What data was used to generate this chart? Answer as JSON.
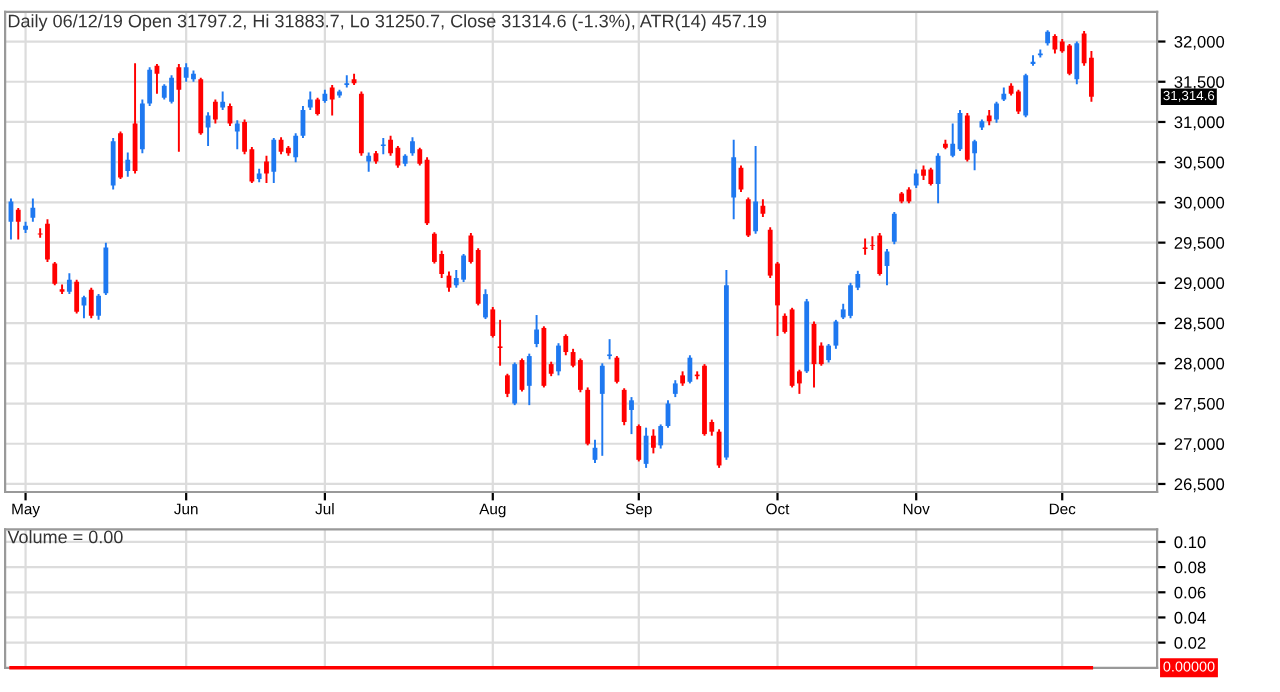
{
  "chart_data": [
    {
      "type": "candlestick",
      "title": "Daily 06/12/19 Open 31797.2, Hi 31883.7, Lo 31250.7, Close 31314.6 (-1.3%), ATR(14) 457.19",
      "categories": [
        null,
        null,
        "May",
        null,
        null,
        null,
        null,
        null,
        null,
        null,
        null,
        null,
        null,
        null,
        null,
        null,
        null,
        null,
        null,
        null,
        null,
        null,
        null,
        null,
        "Jun",
        null,
        null,
        null,
        null,
        null,
        null,
        null,
        null,
        null,
        null,
        null,
        null,
        null,
        null,
        null,
        null,
        null,
        null,
        "Jul",
        null,
        null,
        null,
        null,
        null,
        null,
        null,
        null,
        null,
        null,
        null,
        null,
        null,
        null,
        null,
        null,
        null,
        null,
        null,
        null,
        null,
        null,
        "Aug",
        null,
        null,
        null,
        null,
        null,
        null,
        null,
        null,
        null,
        null,
        null,
        null,
        null,
        null,
        null,
        null,
        null,
        null,
        null,
        "Sep",
        null,
        null,
        null,
        null,
        null,
        null,
        null,
        null,
        null,
        null,
        null,
        null,
        null,
        null,
        null,
        null,
        null,
        null,
        "Oct",
        null,
        null,
        null,
        null,
        null,
        null,
        null,
        null,
        null,
        null,
        null,
        null,
        null,
        null,
        null,
        null,
        null,
        null,
        "Nov",
        null,
        null,
        null,
        null,
        null,
        null,
        null,
        null,
        null,
        null,
        null,
        null,
        null,
        null,
        null,
        null,
        null,
        null,
        null,
        "Dec",
        null,
        null,
        null,
        null
      ],
      "ohlc": [
        [
          29761,
          30050,
          29540,
          30010
        ],
        [
          29910,
          29930,
          29540,
          29761
        ],
        [
          29660,
          29760,
          29620,
          29710
        ],
        [
          29810,
          30050,
          29760,
          29935
        ],
        [
          29615,
          29680,
          29560,
          29600
        ],
        [
          29735,
          29790,
          29260,
          29290
        ],
        [
          29240,
          29260,
          28970,
          28990
        ],
        [
          28920,
          28980,
          28860,
          28890
        ],
        [
          28890,
          29120,
          28860,
          29040
        ],
        [
          29015,
          29040,
          28620,
          28640
        ],
        [
          28720,
          28840,
          28560,
          28820
        ],
        [
          28915,
          28940,
          28560,
          28590
        ],
        [
          28590,
          28860,
          28540,
          28840
        ],
        [
          28870,
          29500,
          28850,
          29440
        ],
        [
          30210,
          30800,
          30160,
          30760
        ],
        [
          30860,
          30880,
          30290,
          30310
        ],
        [
          30390,
          30620,
          30320,
          30530
        ],
        [
          30980,
          31730,
          30360,
          30390
        ],
        [
          30660,
          31280,
          30610,
          31230
        ],
        [
          31230,
          31680,
          31200,
          31650
        ],
        [
          31700,
          31720,
          31350,
          31600
        ],
        [
          31300,
          31470,
          31280,
          31450
        ],
        [
          31250,
          31580,
          31230,
          31550
        ],
        [
          31680,
          31720,
          30630,
          31400
        ],
        [
          31550,
          31730,
          31500,
          31680
        ],
        [
          31530,
          31640,
          31500,
          31600
        ],
        [
          31530,
          31550,
          30840,
          30860
        ],
        [
          30930,
          31120,
          30700,
          31080
        ],
        [
          31250,
          31280,
          30980,
          31030
        ],
        [
          31180,
          31380,
          31150,
          31250
        ],
        [
          31200,
          31230,
          30950,
          30980
        ],
        [
          30880,
          31020,
          30660,
          30980
        ],
        [
          31000,
          31030,
          30600,
          30630
        ],
        [
          30660,
          30690,
          30240,
          30260
        ],
        [
          30290,
          30420,
          30250,
          30360
        ],
        [
          30510,
          30580,
          30240,
          30360
        ],
        [
          30380,
          30800,
          30240,
          30780
        ],
        [
          30780,
          30810,
          30600,
          30630
        ],
        [
          30680,
          30700,
          30580,
          30610
        ],
        [
          30560,
          30860,
          30500,
          30830
        ],
        [
          30830,
          31200,
          30800,
          31150
        ],
        [
          31180,
          31380,
          31150,
          31280
        ],
        [
          31280,
          31300,
          31080,
          31100
        ],
        [
          31260,
          31400,
          31240,
          31350
        ],
        [
          31430,
          31460,
          31080,
          31280
        ],
        [
          31330,
          31400,
          31300,
          31380
        ],
        [
          31460,
          31580,
          31430,
          31480
        ],
        [
          31530,
          31600,
          31460,
          31480
        ],
        [
          31350,
          31380,
          30580,
          30610
        ],
        [
          30510,
          30620,
          30380,
          30580
        ],
        [
          30610,
          30640,
          30480,
          30510
        ],
        [
          30700,
          30800,
          30600,
          30720
        ],
        [
          30780,
          30830,
          30580,
          30610
        ],
        [
          30680,
          30700,
          30430,
          30460
        ],
        [
          30480,
          30600,
          30450,
          30580
        ],
        [
          30610,
          30810,
          30580,
          30760
        ],
        [
          30660,
          30680,
          30460,
          30480
        ],
        [
          30530,
          30560,
          29720,
          29740
        ],
        [
          29610,
          29630,
          29240,
          29260
        ],
        [
          29360,
          29400,
          29060,
          29110
        ],
        [
          29090,
          29140,
          28890,
          28940
        ],
        [
          28970,
          29160,
          28940,
          29060
        ],
        [
          29040,
          29360,
          29010,
          29340
        ],
        [
          29590,
          29620,
          29240,
          29260
        ],
        [
          29410,
          29430,
          28720,
          28740
        ],
        [
          28570,
          28920,
          28550,
          28860
        ],
        [
          28670,
          28700,
          28320,
          28340
        ],
        [
          28210,
          28540,
          27970,
          28190
        ],
        [
          27850,
          27870,
          27580,
          27620
        ],
        [
          27500,
          28010,
          27480,
          27990
        ],
        [
          28040,
          28060,
          27650,
          27670
        ],
        [
          27720,
          28120,
          27480,
          28090
        ],
        [
          28240,
          28600,
          28200,
          28420
        ],
        [
          28440,
          28460,
          27700,
          27720
        ],
        [
          27990,
          28020,
          27840,
          27870
        ],
        [
          27900,
          28250,
          27850,
          28220
        ],
        [
          28340,
          28360,
          28100,
          28140
        ],
        [
          28140,
          28180,
          27950,
          27970
        ],
        [
          28040,
          28060,
          27640,
          27670
        ],
        [
          27670,
          27700,
          26980,
          27000
        ],
        [
          26800,
          27050,
          26760,
          26950
        ],
        [
          27620,
          28000,
          26850,
          27970
        ],
        [
          28090,
          28300,
          28050,
          28110
        ],
        [
          28070,
          28090,
          27750,
          27770
        ],
        [
          27670,
          27690,
          27230,
          27270
        ],
        [
          27420,
          27580,
          27120,
          27540
        ],
        [
          27220,
          27240,
          26780,
          26800
        ],
        [
          26750,
          27200,
          26700,
          27100
        ],
        [
          27100,
          27180,
          26880,
          26950
        ],
        [
          26980,
          27240,
          26940,
          27220
        ],
        [
          27220,
          27540,
          27200,
          27500
        ],
        [
          27620,
          27790,
          27580,
          27750
        ],
        [
          27850,
          27900,
          27720,
          27750
        ],
        [
          27770,
          28100,
          27750,
          28070
        ],
        [
          27860,
          27900,
          27800,
          27840
        ],
        [
          27970,
          27990,
          27100,
          27120
        ],
        [
          27270,
          27300,
          27100,
          27150
        ],
        [
          27150,
          27180,
          26700,
          26730
        ],
        [
          26830,
          29160,
          26800,
          28970
        ],
        [
          30060,
          30780,
          29790,
          30560
        ],
        [
          30430,
          30460,
          30130,
          30160
        ],
        [
          30040,
          30060,
          29570,
          29590
        ],
        [
          29640,
          30700,
          29610,
          30010
        ],
        [
          29960,
          30040,
          29820,
          29860
        ],
        [
          29660,
          29690,
          29060,
          29090
        ],
        [
          29240,
          29260,
          28340,
          28720
        ],
        [
          28590,
          28620,
          28370,
          28390
        ],
        [
          28670,
          28690,
          27700,
          27720
        ],
        [
          27900,
          27920,
          27620,
          27750
        ],
        [
          27900,
          28800,
          27880,
          28770
        ],
        [
          28490,
          28520,
          27700,
          27990
        ],
        [
          28220,
          28260,
          27970,
          27990
        ],
        [
          28040,
          28240,
          28010,
          28220
        ],
        [
          28220,
          28540,
          28180,
          28520
        ],
        [
          28570,
          28740,
          28550,
          28670
        ],
        [
          28590,
          29000,
          28560,
          28970
        ],
        [
          28940,
          29150,
          28910,
          29110
        ],
        [
          29440,
          29550,
          29350,
          29420
        ],
        [
          29470,
          29580,
          29410,
          29460
        ],
        [
          29590,
          29620,
          29090,
          29110
        ],
        [
          29210,
          29420,
          28970,
          29390
        ],
        [
          29510,
          29880,
          29480,
          29860
        ],
        [
          30110,
          30130,
          29990,
          30010
        ],
        [
          30160,
          30190,
          29990,
          30010
        ],
        [
          30210,
          30410,
          30180,
          30360
        ],
        [
          30410,
          30460,
          30280,
          30330
        ],
        [
          30410,
          30430,
          30210,
          30230
        ],
        [
          30230,
          30610,
          29990,
          30580
        ],
        [
          30730,
          30780,
          30660,
          30680
        ],
        [
          30580,
          30980,
          30560,
          30730
        ],
        [
          30660,
          31150,
          30640,
          31110
        ],
        [
          31080,
          31110,
          30510,
          30530
        ],
        [
          30610,
          30780,
          30400,
          30760
        ],
        [
          30930,
          31030,
          30900,
          31010
        ],
        [
          31080,
          31150,
          30960,
          31010
        ],
        [
          31030,
          31250,
          30990,
          31230
        ],
        [
          31280,
          31430,
          31260,
          31350
        ],
        [
          31450,
          31480,
          31330,
          31350
        ],
        [
          31380,
          31400,
          31100,
          31130
        ],
        [
          31080,
          31600,
          31060,
          31580
        ],
        [
          31720,
          31830,
          31700,
          31750
        ],
        [
          31830,
          31900,
          31800,
          31850
        ],
        [
          31980,
          32140,
          31950,
          32120
        ],
        [
          32070,
          32090,
          31850,
          31900
        ],
        [
          32000,
          32030,
          31860,
          31880
        ],
        [
          31950,
          31970,
          31580,
          31600
        ],
        [
          31530,
          32000,
          31470,
          31980
        ],
        [
          32100,
          32130,
          31700,
          31730
        ],
        [
          31797.2,
          31883.7,
          31250.7,
          31314.6
        ]
      ],
      "colors": [
        "#1e78f0",
        "#ff0000",
        "#1e78f0",
        "#1e78f0",
        "#ff0000",
        "#ff0000",
        "#ff0000",
        "#ff0000",
        "#1e78f0",
        "#ff0000",
        "#1e78f0",
        "#ff0000",
        "#1e78f0",
        "#1e78f0",
        "#1e78f0",
        "#ff0000",
        "#1e78f0",
        "#ff0000",
        "#1e78f0",
        "#1e78f0",
        "#ff0000",
        "#1e78f0",
        "#1e78f0",
        "#ff0000",
        "#1e78f0",
        "#1e78f0",
        "#ff0000",
        "#1e78f0",
        "#ff0000",
        "#1e78f0",
        "#ff0000",
        "#1e78f0",
        "#ff0000",
        "#ff0000",
        "#1e78f0",
        "#ff0000",
        "#1e78f0",
        "#ff0000",
        "#ff0000",
        "#1e78f0",
        "#1e78f0",
        "#1e78f0",
        "#ff0000",
        "#1e78f0",
        "#ff0000",
        "#1e78f0",
        "#1e78f0",
        "#ff0000",
        "#ff0000",
        "#1e78f0",
        "#ff0000",
        "#1e78f0",
        "#ff0000",
        "#ff0000",
        "#1e78f0",
        "#1e78f0",
        "#ff0000",
        "#ff0000",
        "#ff0000",
        "#ff0000",
        "#ff0000",
        "#1e78f0",
        "#1e78f0",
        "#ff0000",
        "#ff0000",
        "#1e78f0",
        "#ff0000",
        "#ff0000",
        "#ff0000",
        "#1e78f0",
        "#ff0000",
        "#1e78f0",
        "#1e78f0",
        "#ff0000",
        "#ff0000",
        "#1e78f0",
        "#ff0000",
        "#ff0000",
        "#ff0000",
        "#ff0000",
        "#1e78f0",
        "#1e78f0",
        "#1e78f0",
        "#ff0000",
        "#ff0000",
        "#1e78f0",
        "#ff0000",
        "#1e78f0",
        "#ff0000",
        "#1e78f0",
        "#1e78f0",
        "#1e78f0",
        "#ff0000",
        "#1e78f0",
        "#ff0000",
        "#ff0000",
        "#ff0000",
        "#ff0000",
        "#1e78f0",
        "#1e78f0",
        "#ff0000",
        "#ff0000",
        "#1e78f0",
        "#ff0000",
        "#ff0000",
        "#ff0000",
        "#ff0000",
        "#ff0000",
        "#ff0000",
        "#1e78f0",
        "#ff0000",
        "#ff0000",
        "#1e78f0",
        "#1e78f0",
        "#1e78f0",
        "#1e78f0",
        "#1e78f0",
        "#ff0000",
        "#ff0000",
        "#ff0000",
        "#1e78f0",
        "#1e78f0",
        "#ff0000",
        "#ff0000",
        "#1e78f0",
        "#ff0000",
        "#ff0000",
        "#1e78f0",
        "#ff0000",
        "#1e78f0",
        "#1e78f0",
        "#ff0000",
        "#1e78f0",
        "#1e78f0",
        "#ff0000",
        "#1e78f0",
        "#1e78f0",
        "#ff0000",
        "#ff0000",
        "#1e78f0",
        "#1e78f0",
        "#1e78f0",
        "#1e78f0",
        "#ff0000",
        "#ff0000",
        "#ff0000",
        "#1e78f0",
        "#ff0000",
        "#ff0000"
      ],
      "ylim": [
        26400,
        32370
      ],
      "yticks": [
        {
          "value": 26500,
          "label": "26,500"
        },
        {
          "value": 27000,
          "label": "27,000"
        },
        {
          "value": 27500,
          "label": "27,500"
        },
        {
          "value": 28000,
          "label": "28,000"
        },
        {
          "value": 28500,
          "label": "28,500"
        },
        {
          "value": 29000,
          "label": "29,000"
        },
        {
          "value": 29500,
          "label": "29,500"
        },
        {
          "value": 30000,
          "label": "30,000"
        },
        {
          "value": 30500,
          "label": "30,500"
        },
        {
          "value": 31000,
          "label": "31,000"
        },
        {
          "value": 31500,
          "label": "31,500"
        },
        {
          "value": 32000,
          "label": "32,000"
        }
      ],
      "annotations": [
        "31,314.6"
      ],
      "grid": true
    },
    {
      "type": "line",
      "title": "Volume = 0.00",
      "categories": [
        null,
        null,
        null,
        null,
        null,
        null,
        null,
        null,
        null,
        null,
        null,
        null,
        null,
        null,
        null,
        null,
        null,
        null,
        null,
        null,
        null,
        null,
        null,
        null,
        null,
        null,
        null,
        null,
        null,
        null,
        null,
        null,
        null,
        null,
        null,
        null,
        null,
        null,
        null,
        null,
        null,
        null,
        null,
        null,
        null,
        null,
        null,
        null,
        null,
        null,
        null,
        null,
        null,
        null,
        null,
        null,
        null,
        null,
        null,
        null,
        null,
        null,
        null,
        null,
        null,
        null,
        null,
        null,
        null,
        null,
        null,
        null,
        null,
        null,
        null,
        null,
        null,
        null,
        null,
        null,
        null,
        null,
        null,
        null,
        null,
        null,
        null,
        null,
        null,
        null,
        null,
        null,
        null,
        null,
        null,
        null,
        null,
        null,
        null,
        null,
        null,
        null,
        null,
        null,
        null,
        null,
        null,
        null,
        null,
        null,
        null,
        null,
        null,
        null,
        null,
        null,
        null,
        null,
        null,
        null,
        null,
        null,
        null,
        null,
        null,
        null,
        null,
        null,
        null,
        null,
        null,
        null,
        null,
        null,
        null,
        null,
        null,
        null,
        null,
        null,
        null,
        null,
        null,
        null,
        null,
        null,
        null,
        null,
        null
      ],
      "series": [
        {
          "color": "#ff0000",
          "values": [
            0,
            0,
            0,
            0,
            0,
            0,
            0,
            0,
            0,
            0,
            0,
            0,
            0,
            0,
            0,
            0,
            0,
            0,
            0,
            0,
            0,
            0,
            0,
            0,
            0,
            0,
            0,
            0,
            0,
            0,
            0,
            0,
            0,
            0,
            0,
            0,
            0,
            0,
            0,
            0,
            0,
            0,
            0,
            0,
            0,
            0,
            0,
            0,
            0,
            0,
            0,
            0,
            0,
            0,
            0,
            0,
            0,
            0,
            0,
            0,
            0,
            0,
            0,
            0,
            0,
            0,
            0,
            0,
            0,
            0,
            0,
            0,
            0,
            0,
            0,
            0,
            0,
            0,
            0,
            0,
            0,
            0,
            0,
            0,
            0,
            0,
            0,
            0,
            0,
            0,
            0,
            0,
            0,
            0,
            0,
            0,
            0,
            0,
            0,
            0,
            0,
            0,
            0,
            0,
            0,
            0,
            0,
            0,
            0,
            0,
            0,
            0,
            0,
            0,
            0,
            0,
            0,
            0,
            0,
            0,
            0,
            0,
            0,
            0,
            0,
            0,
            0,
            0,
            0,
            0,
            0,
            0,
            0,
            0,
            0,
            0,
            0,
            0,
            0,
            0,
            0,
            0,
            0,
            0,
            0,
            0,
            0,
            0,
            0
          ]
        }
      ],
      "annotations": [
        "0.00000"
      ],
      "ylim": [
        0,
        0.11
      ],
      "yticks": [
        0.02,
        0.04,
        0.06,
        0.08,
        {
          "value": 0.1,
          "label": "0.10"
        }
      ],
      "grid": true
    }
  ]
}
